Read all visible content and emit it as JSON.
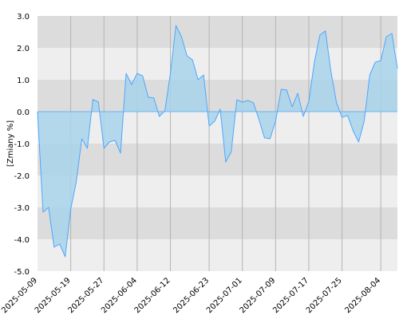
{
  "chart_data": {
    "type": "area",
    "title": "",
    "xlabel": "",
    "ylabel": "[Zmiany %]",
    "ylim": [
      -5.0,
      3.0
    ],
    "y_ticks": [
      "3.0",
      "2.0",
      "1.0",
      "0.0",
      "-1.0",
      "-2.0",
      "-3.0",
      "-4.0",
      "-5.0"
    ],
    "x_tick_labels": [
      "2025-05-09",
      "2025-05-19",
      "2025-05-27",
      "2025-06-04",
      "2025-06-12",
      "2025-06-23",
      "2025-07-01",
      "2025-07-09",
      "2025-07-17",
      "2025-07-25",
      "2025-08-04"
    ],
    "x_tick_index": [
      0,
      6,
      12,
      18,
      24,
      31,
      37,
      43,
      49,
      55,
      62
    ],
    "grid": true,
    "line_color": "#4da6ff",
    "fill_color": "#a8d4ea",
    "band_colors": [
      "#dcdcdc",
      "#eeeeee"
    ],
    "series": [
      {
        "values": [
          0.0,
          -3.15,
          -3.0,
          -4.25,
          -4.15,
          -4.55,
          -3.05,
          -2.2,
          -0.85,
          -1.15,
          0.38,
          0.3,
          -1.15,
          -0.95,
          -0.9,
          -1.3,
          1.2,
          0.85,
          1.2,
          1.12,
          0.45,
          0.43,
          -0.15,
          0.02,
          1.2,
          2.7,
          2.35,
          1.75,
          1.62,
          1.0,
          1.15,
          -0.45,
          -0.3,
          0.08,
          -1.58,
          -1.25,
          0.37,
          0.3,
          0.35,
          0.28,
          -0.25,
          -0.82,
          -0.85,
          -0.3,
          0.7,
          0.68,
          0.15,
          0.58,
          -0.15,
          0.32,
          1.55,
          2.4,
          2.53,
          1.25,
          0.28,
          -0.18,
          -0.12,
          -0.6,
          -0.95,
          -0.3,
          1.15,
          1.55,
          1.6,
          2.35,
          2.45,
          1.35
        ]
      }
    ]
  }
}
